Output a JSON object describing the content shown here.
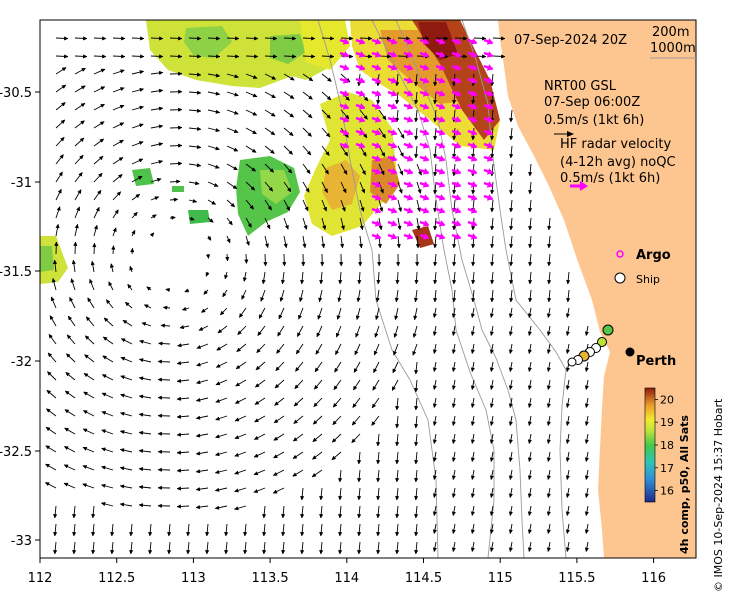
{
  "map": {
    "timestamp": "07-Sep-2024 20Z",
    "isobaths": [
      "200m",
      "1000m"
    ],
    "gsl_block": {
      "title": "NRT00 GSL",
      "time": "07-Sep 06:00Z",
      "scale": "0.5m/s (1kt 6h)"
    },
    "radar_block": {
      "title": "HF radar velocity",
      "detail": "(4-12h avg) noQC",
      "scale": "0.5m/s (1kt 6h)"
    },
    "legend": {
      "argo": "Argo",
      "ship": "Ship"
    },
    "city": "Perth",
    "colorbar": {
      "title": "4h comp, p50, All Sats",
      "ticks": [
        "20",
        "19",
        "18",
        "17",
        "16"
      ],
      "min": 15.5,
      "max": 20.5
    },
    "x_ticks": [
      "112",
      "112.5",
      "113",
      "113.5",
      "114",
      "114.5",
      "115",
      "115.5",
      "116"
    ],
    "y_ticks": [
      "-30.5",
      "-31",
      "-31.5",
      "-32",
      "-32.5",
      "-33"
    ],
    "credit": "© IMOS 10-Sep-2024 15:37 Hobart",
    "colors": {
      "land": "#fdc690",
      "radar_arrow": "#ff00ff",
      "contour": "#9a9a9a",
      "argo": "#ff00ff"
    }
  }
}
